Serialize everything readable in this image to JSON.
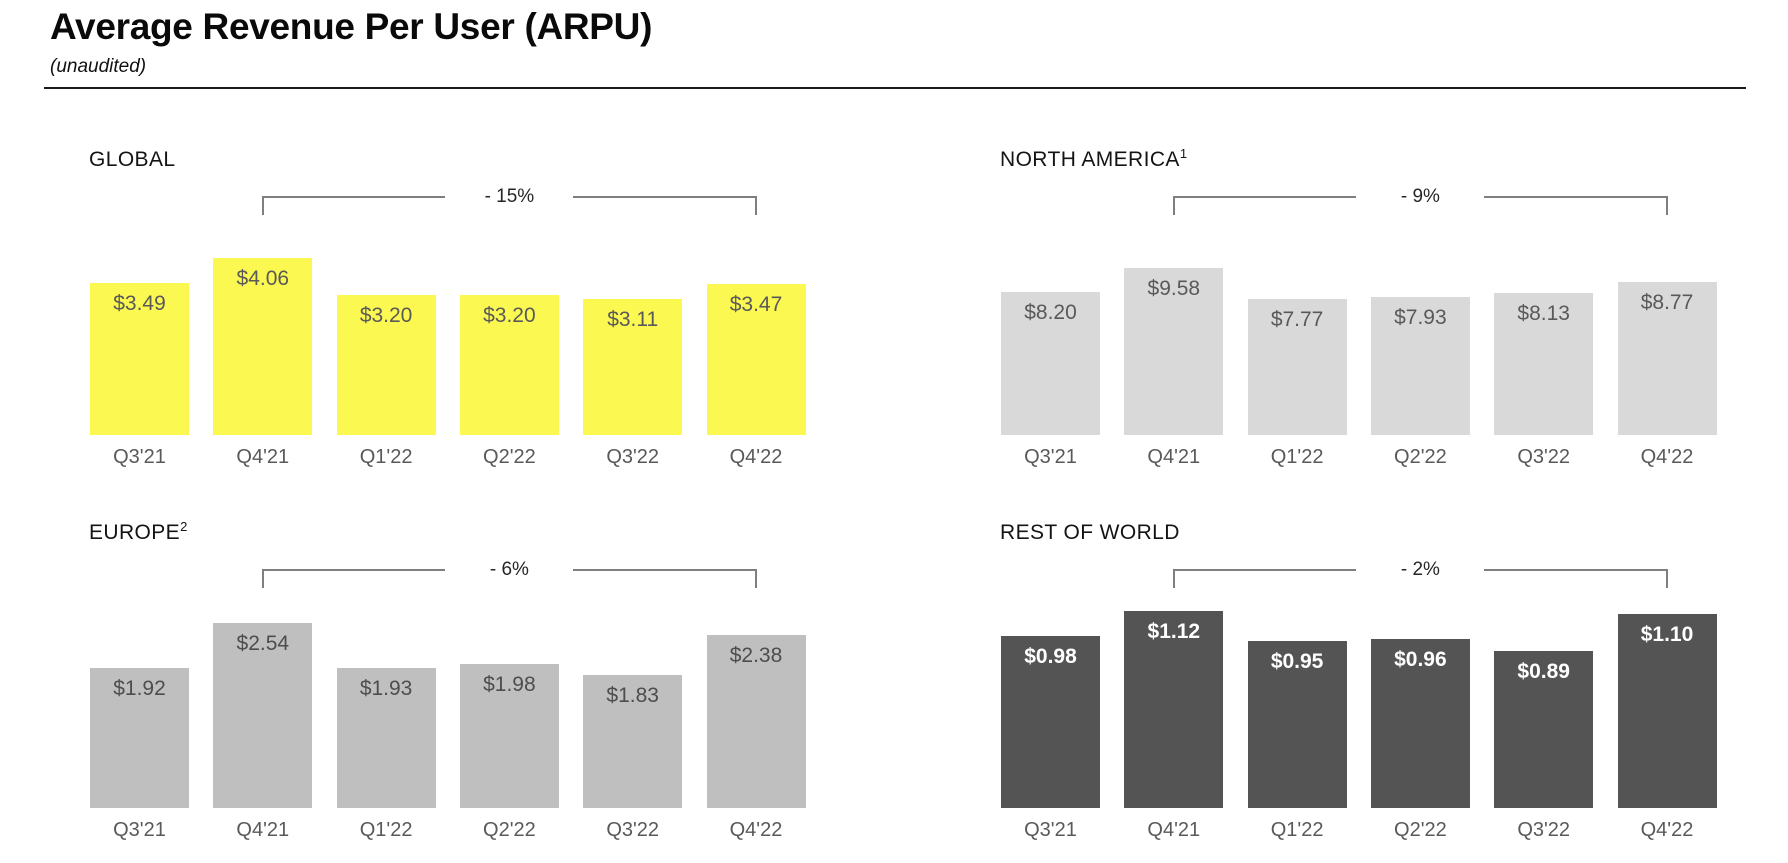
{
  "page": {
    "title": "Average Revenue Per User (ARPU)",
    "subtitle": "(unaudited)"
  },
  "chart_data": [
    {
      "type": "bar",
      "title": "GLOBAL",
      "footnote_mark": "",
      "categories": [
        "Q3'21",
        "Q4'21",
        "Q1'22",
        "Q2'22",
        "Q3'22",
        "Q4'22"
      ],
      "values": [
        3.49,
        4.06,
        3.2,
        3.2,
        3.11,
        3.47
      ],
      "value_labels": [
        "$3.49",
        "$4.06",
        "$3.20",
        "$3.20",
        "$3.11",
        "$3.47"
      ],
      "ylim": [
        0,
        4.06
      ],
      "grid": false,
      "legend": "none",
      "change": {
        "label": "- 15%",
        "from": "Q4'21",
        "to": "Q4'22"
      },
      "bar_color": "#FBF851",
      "value_label_color": "#595959"
    },
    {
      "type": "bar",
      "title": "NORTH AMERICA",
      "footnote_mark": "1",
      "categories": [
        "Q3'21",
        "Q4'21",
        "Q1'22",
        "Q2'22",
        "Q3'22",
        "Q4'22"
      ],
      "values": [
        8.2,
        9.58,
        7.77,
        7.93,
        8.13,
        8.77
      ],
      "value_labels": [
        "$8.20",
        "$9.58",
        "$7.77",
        "$7.93",
        "$8.13",
        "$8.77"
      ],
      "ylim": [
        0,
        9.58
      ],
      "grid": false,
      "legend": "none",
      "change": {
        "label": "- 9%",
        "from": "Q4'21",
        "to": "Q4'22"
      },
      "bar_color": "#D9D9D9",
      "value_label_color": "#595959"
    },
    {
      "type": "bar",
      "title": "EUROPE",
      "footnote_mark": "2",
      "categories": [
        "Q3'21",
        "Q4'21",
        "Q1'22",
        "Q2'22",
        "Q3'22",
        "Q4'22"
      ],
      "values": [
        1.92,
        2.54,
        1.93,
        1.98,
        1.83,
        2.38
      ],
      "value_labels": [
        "$1.92",
        "$2.54",
        "$1.93",
        "$1.98",
        "$1.83",
        "$2.38"
      ],
      "ylim": [
        0,
        2.54
      ],
      "grid": false,
      "legend": "none",
      "change": {
        "label": "- 6%",
        "from": "Q4'21",
        "to": "Q4'22"
      },
      "bar_color": "#BFBFBF",
      "value_label_color": "#4D4D4D"
    },
    {
      "type": "bar",
      "title": "REST OF WORLD",
      "footnote_mark": "",
      "categories": [
        "Q3'21",
        "Q4'21",
        "Q1'22",
        "Q2'22",
        "Q3'22",
        "Q4'22"
      ],
      "values": [
        0.98,
        1.12,
        0.95,
        0.96,
        0.89,
        1.1
      ],
      "value_labels": [
        "$0.98",
        "$1.12",
        "$0.95",
        "$0.96",
        "$0.89",
        "$1.10"
      ],
      "ylim": [
        0,
        1.12
      ],
      "grid": false,
      "legend": "none",
      "change": {
        "label": "- 2%",
        "from": "Q4'21",
        "to": "Q4'22"
      },
      "bar_color": "#545454",
      "value_label_color": "#FFFFFF"
    }
  ]
}
